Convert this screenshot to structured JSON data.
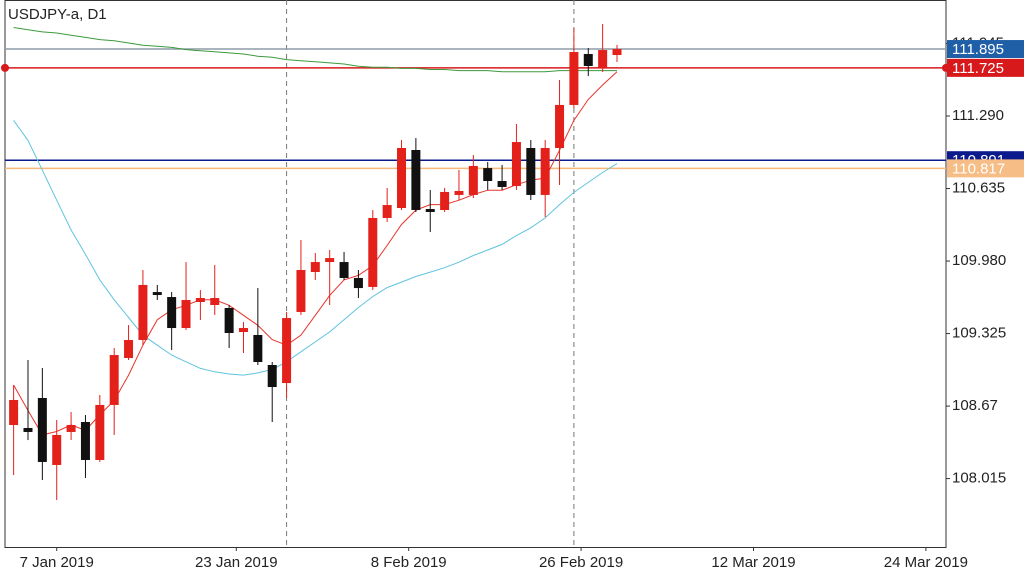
{
  "chart_data": {
    "type": "candlestick",
    "title": "USDJPY-a, D1",
    "up_color": "#e3211a",
    "down_color": "#111111",
    "open": [
      108.499,
      108.472,
      108.743,
      108.138,
      108.436,
      108.526,
      108.183,
      108.68,
      109.104,
      109.267,
      109.7,
      109.655,
      109.375,
      109.61,
      109.583,
      109.556,
      109.339,
      109.312,
      109.041,
      108.878,
      109.52,
      109.881,
      109.971,
      109.971,
      109.827,
      109.746,
      110.369,
      110.459,
      110.983,
      110.45,
      110.441,
      110.577,
      110.577,
      110.82,
      110.703,
      110.658,
      111.001,
      110.577,
      111.001,
      111.39,
      111.85,
      111.724,
      111.841
    ],
    "high": [
      108.86,
      109.086,
      109.014,
      108.544,
      108.616,
      108.589,
      108.77,
      109.194,
      109.402,
      109.899,
      109.764,
      109.7,
      109.971,
      109.718,
      109.944,
      109.583,
      109.429,
      109.736,
      109.068,
      109.52,
      110.17,
      110.053,
      110.08,
      110.062,
      109.899,
      110.441,
      110.64,
      111.073,
      111.091,
      110.622,
      110.64,
      110.802,
      110.938,
      110.875,
      110.848,
      111.218,
      111.073,
      111.073,
      111.615,
      112.085,
      111.904,
      112.121,
      111.932
    ],
    "low": [
      108.047,
      108.363,
      108.002,
      107.821,
      108.363,
      108.02,
      108.165,
      108.409,
      109.086,
      109.222,
      109.628,
      109.176,
      109.357,
      109.447,
      109.493,
      109.194,
      109.149,
      109.041,
      108.526,
      108.743,
      109.493,
      109.809,
      109.583,
      109.809,
      109.646,
      109.718,
      110.333,
      110.441,
      110.423,
      110.242,
      110.423,
      110.531,
      110.549,
      110.622,
      110.622,
      110.622,
      110.531,
      110.378,
      110.667,
      111.362,
      111.651,
      111.688,
      111.778
    ],
    "close": [
      108.725,
      108.436,
      108.165,
      108.409,
      108.499,
      108.183,
      108.68,
      109.131,
      109.267,
      109.764,
      109.673,
      109.375,
      109.628,
      109.646,
      109.646,
      109.33,
      109.375,
      109.068,
      108.842,
      109.465,
      109.899,
      109.971,
      110.007,
      109.827,
      109.736,
      110.369,
      110.486,
      111.001,
      110.441,
      110.423,
      110.604,
      110.613,
      110.839,
      110.703,
      110.649,
      111.055,
      110.577,
      111.001,
      111.39,
      111.868,
      111.742,
      111.886,
      111.895
    ],
    "lines": [
      {
        "color": "#3c9a3c",
        "values": [
          112.09,
          112.07,
          112.05,
          112.04,
          112.02,
          112.0,
          111.98,
          111.97,
          111.95,
          111.93,
          111.92,
          111.91,
          111.89,
          111.88,
          111.87,
          111.86,
          111.85,
          111.83,
          111.82,
          111.8,
          111.79,
          111.78,
          111.77,
          111.76,
          111.74,
          111.73,
          111.73,
          111.72,
          111.72,
          111.71,
          111.71,
          111.7,
          111.7,
          111.7,
          111.69,
          111.69,
          111.69,
          111.69,
          111.7,
          111.7,
          111.7,
          111.7,
          111.7
        ]
      },
      {
        "color": "#5fc3df",
        "values": [
          111.25,
          111.07,
          110.8,
          110.53,
          110.26,
          110.04,
          109.81,
          109.63,
          109.47,
          109.31,
          109.22,
          109.13,
          109.07,
          109.01,
          108.98,
          108.96,
          108.95,
          108.97,
          109.0,
          109.07,
          109.16,
          109.25,
          109.34,
          109.45,
          109.56,
          109.66,
          109.74,
          109.79,
          109.84,
          109.88,
          109.92,
          109.97,
          110.03,
          110.08,
          110.13,
          110.21,
          110.28,
          110.37,
          110.49,
          110.6,
          110.69,
          110.78,
          110.86
        ]
      },
      {
        "color": "#e8332a",
        "values": [
          108.86,
          108.63,
          108.41,
          108.44,
          108.5,
          108.45,
          108.59,
          108.72,
          108.95,
          109.22,
          109.45,
          109.54,
          109.58,
          109.63,
          109.63,
          109.58,
          109.49,
          109.4,
          109.27,
          109.22,
          109.31,
          109.49,
          109.67,
          109.81,
          109.85,
          109.94,
          110.12,
          110.31,
          110.44,
          110.49,
          110.49,
          110.53,
          110.58,
          110.62,
          110.62,
          110.67,
          110.71,
          110.73,
          110.98,
          111.25,
          111.44,
          111.57,
          111.69
        ]
      }
    ],
    "hlines": [
      {
        "value": 111.895,
        "color": "#8e9ca8",
        "box": "#1f5fa8",
        "dots": false
      },
      {
        "value": 111.725,
        "color": "#d7191c",
        "box": "#d7191c",
        "dots": true
      },
      {
        "value": 110.891,
        "color": "#0b1a8c",
        "box": "#0b1a8c",
        "dots": false
      },
      {
        "value": 110.817,
        "color": "#f5b97a",
        "box": "#f6bd86",
        "dots": false
      }
    ],
    "vlines": [
      19,
      39
    ],
    "xlim": [
      -0.6,
      64.9
    ],
    "xticks": [
      {
        "value": 3,
        "label": "7 Jan 2019"
      },
      {
        "value": 15.5,
        "label": "23 Jan 2019"
      },
      {
        "value": 27.5,
        "label": "8 Feb 2019"
      },
      {
        "value": 39.5,
        "label": "26 Feb 2019"
      },
      {
        "value": 51.5,
        "label": "12 Mar 2019"
      },
      {
        "value": 63.5,
        "label": "24 Mar 2019"
      }
    ],
    "ylim": [
      107.397,
      112.338
    ],
    "yticks": [
      108.015,
      108.67,
      109.325,
      {
        "value": 109.98,
        "label": "109.980"
      },
      110.635,
      {
        "value": 111.29,
        "label": "111.290"
      },
      111.945
    ]
  }
}
